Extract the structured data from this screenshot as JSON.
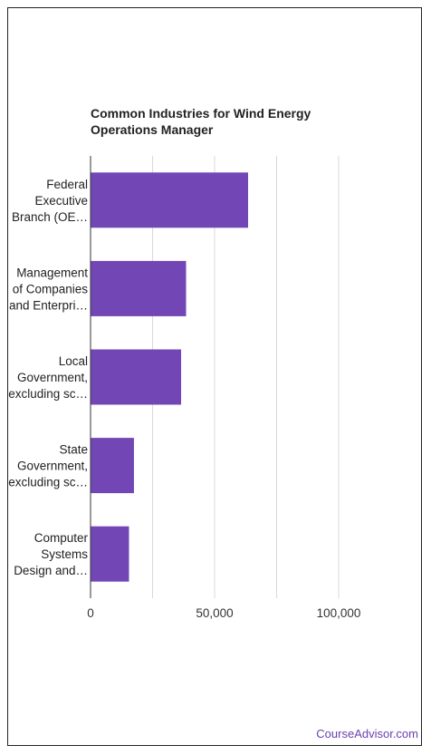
{
  "chart_data": {
    "type": "bar",
    "orientation": "horizontal",
    "title": "Common Industries for Wind Energy Operations Manager",
    "categories": [
      [
        "Federal",
        "Executive",
        "Branch (OE…"
      ],
      [
        "Management",
        "of Companies",
        "and Enterpri…"
      ],
      [
        "Local",
        "Government,",
        "excluding sc…"
      ],
      [
        "State",
        "Government,",
        "excluding sc…"
      ],
      [
        "Computer",
        "Systems",
        "Design and…"
      ]
    ],
    "values": [
      63500,
      38500,
      36500,
      17500,
      15500
    ],
    "xlim": [
      0,
      100000
    ],
    "xticks": [
      0,
      50000,
      100000
    ],
    "xtick_labels": [
      "0",
      "50,000",
      "100,000"
    ],
    "grid": true,
    "bar_color": "#7247b5"
  },
  "credit": "CourseAdvisor.com"
}
